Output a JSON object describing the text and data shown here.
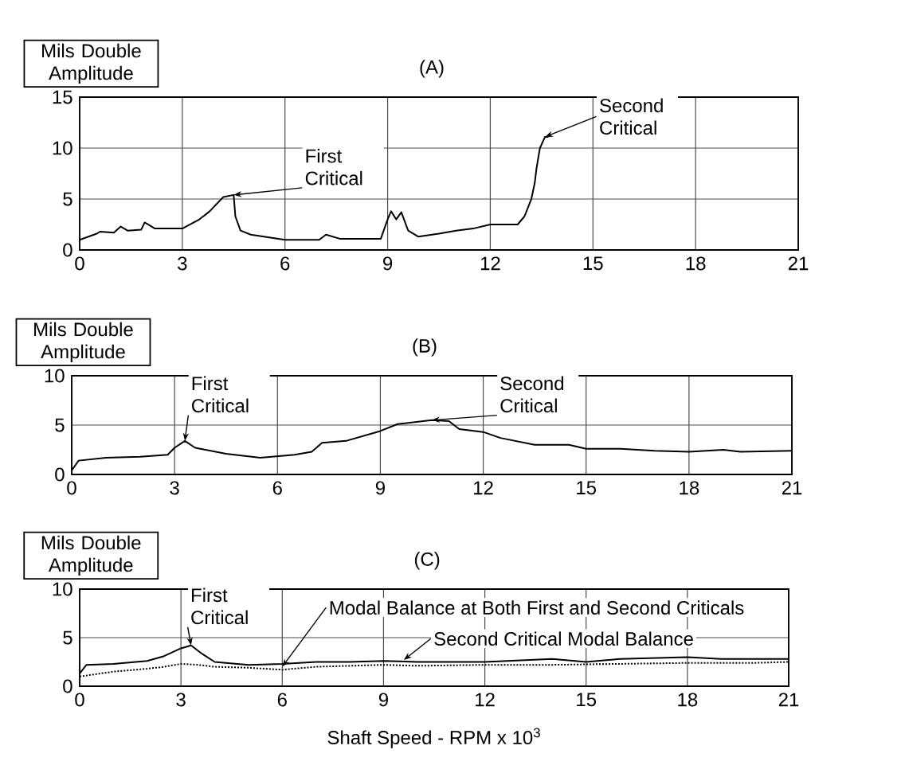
{
  "chart_data": [
    {
      "type": "line",
      "title": "(A)",
      "ylabel": "Mils Double Amplitude",
      "xlim": [
        0,
        21
      ],
      "xticks": [
        0,
        3,
        6,
        9,
        12,
        15,
        18,
        21
      ],
      "ylim": [
        0,
        15
      ],
      "yticks": [
        0,
        5,
        10,
        15
      ],
      "grid": true,
      "annotations": [
        {
          "text": "First Critical",
          "x": 4.5,
          "y": 5.4
        },
        {
          "text": "Second Critical",
          "x": 13.6,
          "y": 11.1
        }
      ],
      "series": [
        {
          "color": "#000000",
          "x": [
            0,
            0.5,
            0.6,
            1.0,
            1.2,
            1.4,
            1.8,
            1.9,
            2.2,
            3.0,
            3.5,
            3.8,
            4.2,
            4.5,
            4.55,
            4.7,
            5.0,
            6.0,
            7.0,
            7.2,
            7.6,
            8.8,
            9.0,
            9.1,
            9.25,
            9.4,
            9.6,
            9.9,
            10.5,
            11.0,
            11.5,
            12.0,
            12.8,
            13.0,
            13.2,
            13.3,
            13.35,
            13.45,
            13.6,
            13.7
          ],
          "values": [
            1.0,
            1.6,
            1.8,
            1.7,
            2.3,
            1.9,
            2.0,
            2.7,
            2.1,
            2.1,
            3.0,
            3.8,
            5.2,
            5.4,
            3.3,
            1.9,
            1.5,
            1.0,
            1.0,
            1.5,
            1.1,
            1.1,
            3.0,
            3.8,
            3.0,
            3.7,
            1.9,
            1.3,
            1.6,
            1.9,
            2.1,
            2.5,
            2.5,
            3.3,
            5.0,
            6.6,
            8.0,
            10.0,
            11.1,
            11.1
          ]
        }
      ]
    },
    {
      "type": "line",
      "title": "(B)",
      "ylabel": "Mils Double Amplitude",
      "xlim": [
        0,
        21
      ],
      "xticks": [
        0,
        3,
        6,
        9,
        12,
        15,
        18,
        21
      ],
      "ylim": [
        0,
        10
      ],
      "yticks": [
        0,
        5,
        10
      ],
      "grid": true,
      "annotations": [
        {
          "text": "First Critical",
          "x": 3.3,
          "y": 3.4
        },
        {
          "text": "Second Critical",
          "x": 10.5,
          "y": 5.5
        }
      ],
      "series": [
        {
          "color": "#000000",
          "x": [
            0,
            0.2,
            1.0,
            2.0,
            2.8,
            3.0,
            3.3,
            3.6,
            4.5,
            5.5,
            6.5,
            7.0,
            7.3,
            8.0,
            9.0,
            9.5,
            10.5,
            11.0,
            11.3,
            12.0,
            12.5,
            13.5,
            14.5,
            15.0,
            16.0,
            17.0,
            18.0,
            19.0,
            19.5,
            21.0
          ],
          "values": [
            0.4,
            1.4,
            1.7,
            1.8,
            2.0,
            2.7,
            3.4,
            2.7,
            2.1,
            1.7,
            2.0,
            2.3,
            3.2,
            3.4,
            4.4,
            5.1,
            5.5,
            5.4,
            4.6,
            4.3,
            3.7,
            3.0,
            3.0,
            2.6,
            2.6,
            2.4,
            2.3,
            2.5,
            2.3,
            2.4
          ]
        }
      ]
    },
    {
      "type": "line",
      "title": "(C)",
      "ylabel": "Mils Double Amplitude",
      "xlabel": "Shaft Speed - RPM x 10$^{3}$",
      "xlim": [
        0,
        21
      ],
      "xticks": [
        0,
        3,
        6,
        9,
        12,
        15,
        18,
        21
      ],
      "ylim": [
        0,
        10
      ],
      "yticks": [
        0,
        5,
        10
      ],
      "grid": true,
      "annotations": [
        {
          "text": "First Critical",
          "x": 3.3,
          "y": 4.2
        },
        {
          "text": "Modal Balance at Both First and Second Criticals",
          "x": 6.0,
          "y": 2.0
        },
        {
          "text": "Second Critical Modal Balance",
          "x": 9.6,
          "y": 2.7
        }
      ],
      "series": [
        {
          "color": "#000000",
          "line_style": "solid",
          "x": [
            0,
            0.2,
            1,
            2,
            2.5,
            3.0,
            3.3,
            3.6,
            4.0,
            5,
            6,
            7,
            8,
            9,
            10,
            12,
            14,
            15,
            16,
            18,
            19,
            20,
            21
          ],
          "values": [
            1.3,
            2.2,
            2.3,
            2.6,
            3.1,
            3.9,
            4.2,
            3.4,
            2.5,
            2.2,
            2.3,
            2.5,
            2.5,
            2.6,
            2.5,
            2.5,
            2.8,
            2.5,
            2.8,
            3.0,
            2.8,
            2.8,
            2.8
          ]
        },
        {
          "color": "#000000",
          "line_style": "dotted",
          "x": [
            0,
            1,
            2,
            2.5,
            3,
            3.5,
            4,
            5,
            6,
            7,
            8,
            9,
            10,
            12,
            14,
            16,
            18,
            20,
            21
          ],
          "values": [
            1.0,
            1.5,
            1.8,
            2.0,
            2.3,
            2.2,
            2.0,
            1.9,
            1.7,
            2.0,
            2.1,
            2.2,
            2.1,
            2.2,
            2.2,
            2.3,
            2.4,
            2.4,
            2.5
          ]
        }
      ]
    }
  ]
}
